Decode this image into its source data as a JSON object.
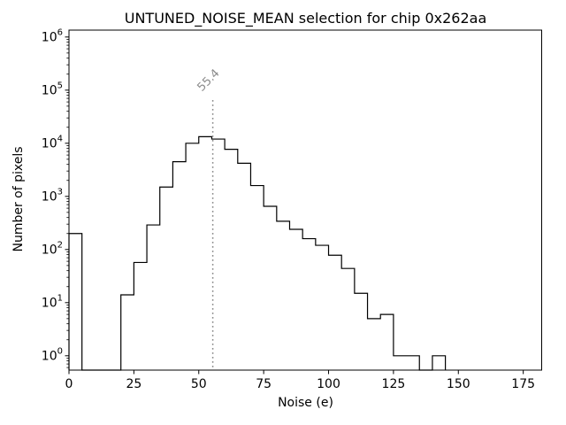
{
  "chart_data": {
    "type": "bar",
    "subtype": "histogram-step",
    "title": "UNTUNED_NOISE_MEAN selection for chip 0x262aa",
    "xlabel": "Noise (e)",
    "ylabel": "Number of pixels",
    "yscale": "log",
    "grid": false,
    "legend": null,
    "bin_width": 5,
    "bin_edges": [
      0,
      5,
      10,
      15,
      20,
      25,
      30,
      35,
      40,
      45,
      50,
      55,
      60,
      65,
      70,
      75,
      80,
      85,
      90,
      95,
      100,
      105,
      110,
      115,
      120,
      125,
      130,
      135,
      140,
      145
    ],
    "counts": [
      200,
      0,
      0,
      0,
      14,
      57,
      290,
      1500,
      4500,
      10000,
      13300,
      12000,
      7700,
      4200,
      1600,
      650,
      340,
      240,
      160,
      120,
      78,
      44,
      15,
      5,
      6,
      1,
      1,
      0,
      1
    ],
    "x_ticks": [
      0,
      25,
      50,
      75,
      100,
      125,
      150,
      175
    ],
    "y_tick_base": "10",
    "y_tick_exponents": [
      0,
      1,
      2,
      3,
      4,
      5,
      6
    ],
    "xlim": [
      0,
      182.1
    ],
    "ylim_log10": [
      -0.27,
      6.13
    ],
    "vline": {
      "x": 55.4,
      "label": "55.4",
      "style": "dotted",
      "color": "#8c8c8c"
    },
    "line_color": "#000000",
    "background": "#ffffff"
  }
}
